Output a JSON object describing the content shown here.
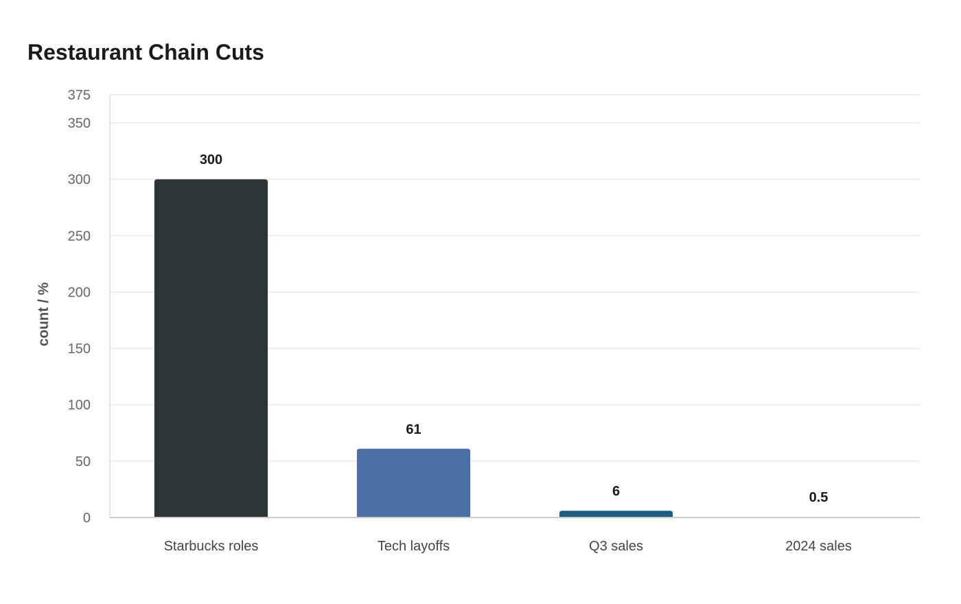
{
  "chart_data": {
    "type": "bar",
    "title": "Restaurant Chain Cuts",
    "xlabel": "",
    "ylabel": "count / %",
    "categories": [
      "Starbucks roles",
      "Tech layoffs",
      "Q3 sales",
      "2024 sales"
    ],
    "values": [
      300,
      61,
      6,
      0.5
    ],
    "data_labels": [
      "300",
      "61",
      "6",
      "0.5"
    ],
    "colors": [
      "#2e3538",
      "#4a6fa5",
      "#1b5e82",
      "#e4e4e4"
    ],
    "ylim": [
      0,
      375
    ],
    "yticks": [
      0,
      50,
      100,
      150,
      200,
      250,
      300,
      350,
      375
    ],
    "grid": true,
    "legend": "none"
  }
}
